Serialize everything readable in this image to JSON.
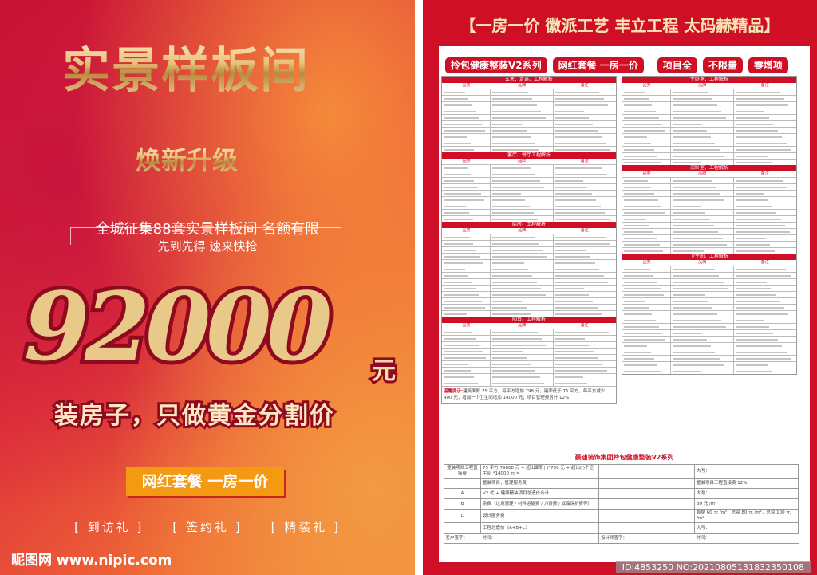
{
  "left": {
    "title": "实景样板间",
    "subtitle": "焕新升级",
    "promo_line1": "全城征集88套实景样板间  名额有限",
    "promo_line2": "先到先得    速来快抢",
    "price": "92000",
    "price_unit": "元",
    "slogan": "装房子，只做黄金分割价",
    "package_button": "网红套餐  一房一价",
    "gifts": [
      "[ 到访礼 ]",
      "[ 签约礼 ]",
      "[ 精装礼 ]"
    ],
    "watermark": "昵图网 www.nipic.com"
  },
  "right": {
    "title": "【一房一价 徽派工艺 丰立工程 太码赫精品】",
    "tags": [
      "拎包健康整装V2系列",
      "网红套餐  一房一价",
      "项目全",
      "不限量",
      "零增项"
    ],
    "column_headers": [
      "品类",
      "品牌",
      "备注"
    ],
    "left_sections": [
      {
        "title": "玄关、走道、工程解析",
        "rows": 10
      },
      {
        "title": "客厅、餐厅工程解析",
        "rows": 9
      },
      {
        "title": "厨房、工程解析",
        "rows": 13
      },
      {
        "title": "阳台、工程解析",
        "rows": 9
      }
    ],
    "right_sections": [
      {
        "title": "主卧室、工程解析",
        "rows": 12
      },
      {
        "title": "次卧室、工程解析",
        "rows": 12
      },
      {
        "title": "卫生间、工程解析",
        "rows": 17
      }
    ],
    "note_label": "温馨提示:",
    "note_text": "建筑面积 75 平方，每平方增加 798 元，建面低于 75 平方，每平方减少 400 元，增加一个卫生间增加 14000 元，项目管理费另计 12%",
    "bottom_title": "豪迪装饰集团拎包健康整装V2系列",
    "bottom_rows": [
      [
        "整装项目工程直接费",
        "75 平方 79800 元 + 超出面积(    )*798 元 + 超出(    )个卫生间 *14000 元 =",
        "",
        "大写："
      ],
      [
        "",
        "整装项目，管理服务费",
        "",
        "整装项目工程直接费 12%"
      ],
      [
        "A",
        "V2 优 + 健康精装项目总造价合计",
        "",
        "大写："
      ],
      [
        "B",
        "杂费（垃圾清理 / 材料运输费 / 力资费 / 成品保护费等）",
        "",
        "30 元 /m²"
      ],
      [
        "C",
        "设计服务费",
        "",
        "首席 60 元 /m²，总监 80 元 /m²，总监 100 元 /m²"
      ],
      [
        "",
        "工程总造价（A+B+C）",
        "",
        "大写："
      ]
    ],
    "sign_row": [
      "客户签字：",
      "时间：",
      "设计师签字：",
      "时间："
    ],
    "image_id": "ID:4853250 NO:20210805131832350108"
  },
  "colors": {
    "brand_red": "#cf0f26",
    "gold": "#e8c27a",
    "orange": "#f39a12"
  }
}
